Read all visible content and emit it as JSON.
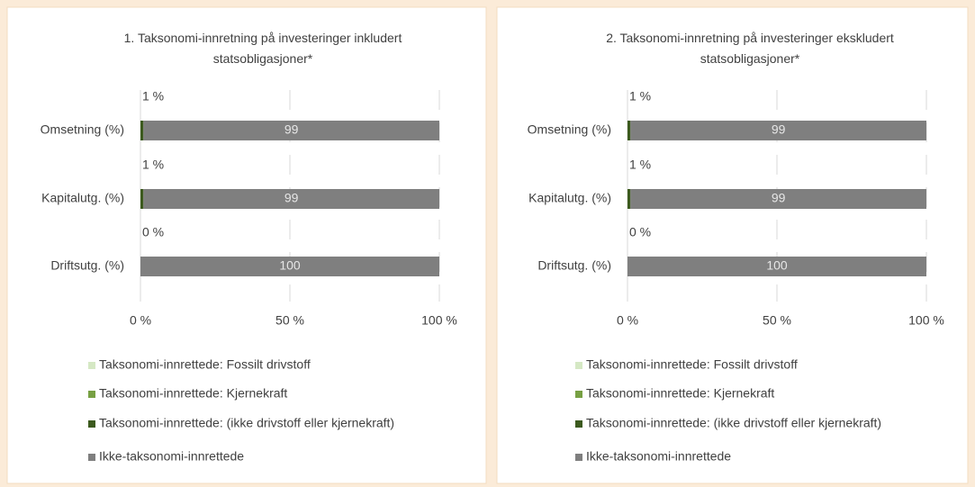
{
  "chart_data": [
    {
      "type": "bar",
      "orientation": "horizontal",
      "stacked": true,
      "title": "1. Taksonomi-innretning på investeringer inkludert statsobligasjoner*",
      "categories": [
        "Omsetning (%)",
        "Kapitalutg. (%)",
        "Driftsutg. (%)"
      ],
      "series": [
        {
          "name": "Taksonomi-innrettede: Fossilt drivstoff",
          "color": "#d5e8c4",
          "values": [
            0,
            0,
            0
          ]
        },
        {
          "name": "Taksonomi-innrettede: Kjernekraft",
          "color": "#77a043",
          "values": [
            0,
            0,
            0
          ]
        },
        {
          "name": "Taksonomi-innrettede: (ikke drivstoff eller kjernekraft)",
          "color": "#3c5a1e",
          "values": [
            1,
            1,
            0
          ],
          "value_labels": [
            "1 %",
            "1 %",
            "0 %"
          ]
        },
        {
          "name": "Ikke-taksonomi-innrettede",
          "color": "#7f7f7f",
          "values": [
            99,
            99,
            100
          ]
        }
      ],
      "xlim": [
        0,
        100
      ],
      "xticks": [
        {
          "value": 0,
          "label": "0 %"
        },
        {
          "value": 50,
          "label": "50 %"
        },
        {
          "value": 100,
          "label": "100 %"
        }
      ],
      "grid": true,
      "legend": "bottom"
    },
    {
      "type": "bar",
      "orientation": "horizontal",
      "stacked": true,
      "title": "2. Taksonomi-innretning på investeringer ekskludert statsobligasjoner*",
      "categories": [
        "Omsetning (%)",
        "Kapitalutg. (%)",
        "Driftsutg. (%)"
      ],
      "series": [
        {
          "name": "Taksonomi-innrettede: Fossilt drivstoff",
          "color": "#d5e8c4",
          "values": [
            0,
            0,
            0
          ]
        },
        {
          "name": "Taksonomi-innrettede: Kjernekraft",
          "color": "#77a043",
          "values": [
            0,
            0,
            0
          ]
        },
        {
          "name": "Taksonomi-innrettede: (ikke drivstoff eller kjernekraft)",
          "color": "#3c5a1e",
          "values": [
            1,
            1,
            0
          ],
          "value_labels": [
            "1 %",
            "1 %",
            "0 %"
          ]
        },
        {
          "name": "Ikke-taksonomi-innrettede",
          "color": "#7f7f7f",
          "values": [
            99,
            99,
            100
          ]
        }
      ],
      "xlim": [
        0,
        100
      ],
      "xticks": [
        {
          "value": 0,
          "label": "0 %"
        },
        {
          "value": 50,
          "label": "50 %"
        },
        {
          "value": 100,
          "label": "100 %"
        }
      ],
      "grid": true,
      "legend": "bottom"
    }
  ]
}
